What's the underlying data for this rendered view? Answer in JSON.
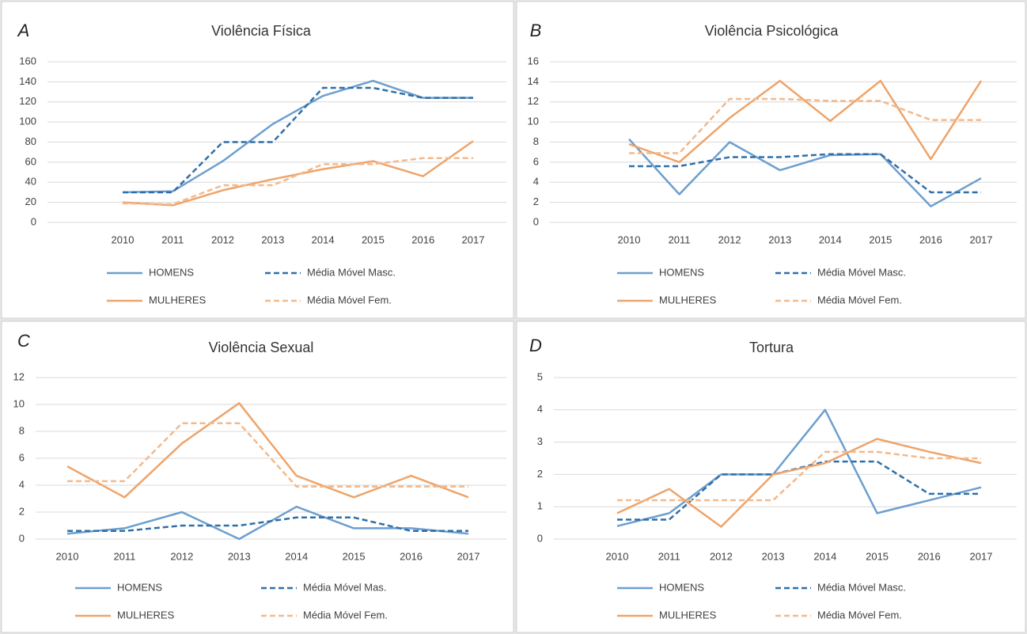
{
  "chart_data": [
    {
      "type": "line",
      "panel_label": "A",
      "title": "Violência Física",
      "categories": [
        "2010",
        "2011",
        "2012",
        "2013",
        "2014",
        "2015",
        "2016",
        "2017"
      ],
      "ylim": [
        0,
        160
      ],
      "yticks": [
        0,
        20,
        40,
        60,
        80,
        100,
        120,
        140,
        160
      ],
      "grid": true,
      "series": [
        {
          "name": "HOMENS",
          "color": "#6c9fcf",
          "dashed": false,
          "values": [
            30,
            31,
            61,
            98,
            126,
            141,
            124,
            124
          ]
        },
        {
          "name": "Média Móvel Masc.",
          "color": "#2f6fa8",
          "dashed": true,
          "values": [
            30,
            30,
            80,
            80,
            134,
            134,
            124,
            124
          ]
        },
        {
          "name": "MULHERES",
          "color": "#eea46a",
          "dashed": false,
          "values": [
            20,
            17,
            32,
            43,
            53,
            61,
            46,
            81
          ]
        },
        {
          "name": "Média Móvel Fem.",
          "color": "#f2b98c",
          "dashed": true,
          "values": [
            19,
            18,
            37,
            37,
            58,
            58,
            64,
            64
          ]
        }
      ]
    },
    {
      "type": "line",
      "panel_label": "B",
      "title": "Violência Psicológica",
      "categories": [
        "2010",
        "2011",
        "2012",
        "2013",
        "2014",
        "2015",
        "2016",
        "2017"
      ],
      "ylim": [
        0,
        16
      ],
      "yticks": [
        0,
        2,
        4,
        6,
        8,
        10,
        12,
        14,
        16
      ],
      "grid": true,
      "series": [
        {
          "name": "HOMENS",
          "color": "#6c9fcf",
          "dashed": false,
          "values": [
            8.3,
            2.8,
            8,
            5.2,
            6.7,
            6.8,
            1.6,
            4.4
          ]
        },
        {
          "name": "Média Móvel Masc.",
          "color": "#2f6fa8",
          "dashed": true,
          "values": [
            5.6,
            5.6,
            6.5,
            6.5,
            6.8,
            6.8,
            3,
            3
          ]
        },
        {
          "name": "MULHERES",
          "color": "#eea46a",
          "dashed": false,
          "values": [
            7.8,
            6,
            10.4,
            14.1,
            10.1,
            14.1,
            6.3,
            14.1
          ]
        },
        {
          "name": "Média Móvel Fem.",
          "color": "#f2b98c",
          "dashed": true,
          "values": [
            6.9,
            6.9,
            12.3,
            12.3,
            12.1,
            12.1,
            10.2,
            10.2
          ]
        }
      ]
    },
    {
      "type": "line",
      "panel_label": "C",
      "title": "Violência Sexual",
      "categories": [
        "2010",
        "2011",
        "2012",
        "2013",
        "2014",
        "2015",
        "2016",
        "2017"
      ],
      "ylim": [
        0,
        12
      ],
      "yticks": [
        0,
        2,
        4,
        6,
        8,
        10,
        12
      ],
      "grid": true,
      "series": [
        {
          "name": "HOMENS",
          "color": "#6c9fcf",
          "dashed": false,
          "values": [
            0.4,
            0.8,
            2,
            0,
            2.4,
            0.8,
            0.8,
            0.4
          ]
        },
        {
          "name": "Média Móvel Mas.",
          "color": "#2f6fa8",
          "dashed": true,
          "values": [
            0.6,
            0.6,
            1,
            1,
            1.6,
            1.6,
            0.6,
            0.6
          ]
        },
        {
          "name": "MULHERES",
          "color": "#eea46a",
          "dashed": false,
          "values": [
            5.4,
            3.1,
            7.1,
            10.1,
            4.7,
            3.1,
            4.7,
            3.1
          ]
        },
        {
          "name": "Média Móvel Fem.",
          "color": "#f2b98c",
          "dashed": true,
          "values": [
            4.3,
            4.3,
            8.6,
            8.6,
            3.9,
            3.9,
            3.9,
            3.9
          ]
        }
      ]
    },
    {
      "type": "line",
      "panel_label": "D",
      "title": "Tortura",
      "categories": [
        "2010",
        "2011",
        "2012",
        "2013",
        "2014",
        "2015",
        "2016",
        "2017"
      ],
      "ylim": [
        0,
        5
      ],
      "yticks": [
        0,
        1,
        2,
        3,
        4,
        5
      ],
      "grid": true,
      "series": [
        {
          "name": "HOMENS",
          "color": "#6c9fcf",
          "dashed": false,
          "values": [
            0.4,
            0.8,
            2,
            2,
            4,
            0.8,
            1.2,
            1.6
          ]
        },
        {
          "name": "Média Móvel Masc.",
          "color": "#2f6fa8",
          "dashed": true,
          "values": [
            0.6,
            0.6,
            2,
            2,
            2.4,
            2.4,
            1.4,
            1.4
          ]
        },
        {
          "name": "MULHERES",
          "color": "#eea46a",
          "dashed": false,
          "values": [
            0.8,
            1.55,
            0.38,
            2,
            2.35,
            3.1,
            2.7,
            2.35
          ]
        },
        {
          "name": "Média Móvel Fem.",
          "color": "#f2b98c",
          "dashed": true,
          "values": [
            1.2,
            1.2,
            1.2,
            1.2,
            2.7,
            2.7,
            2.5,
            2.5
          ]
        }
      ]
    }
  ]
}
